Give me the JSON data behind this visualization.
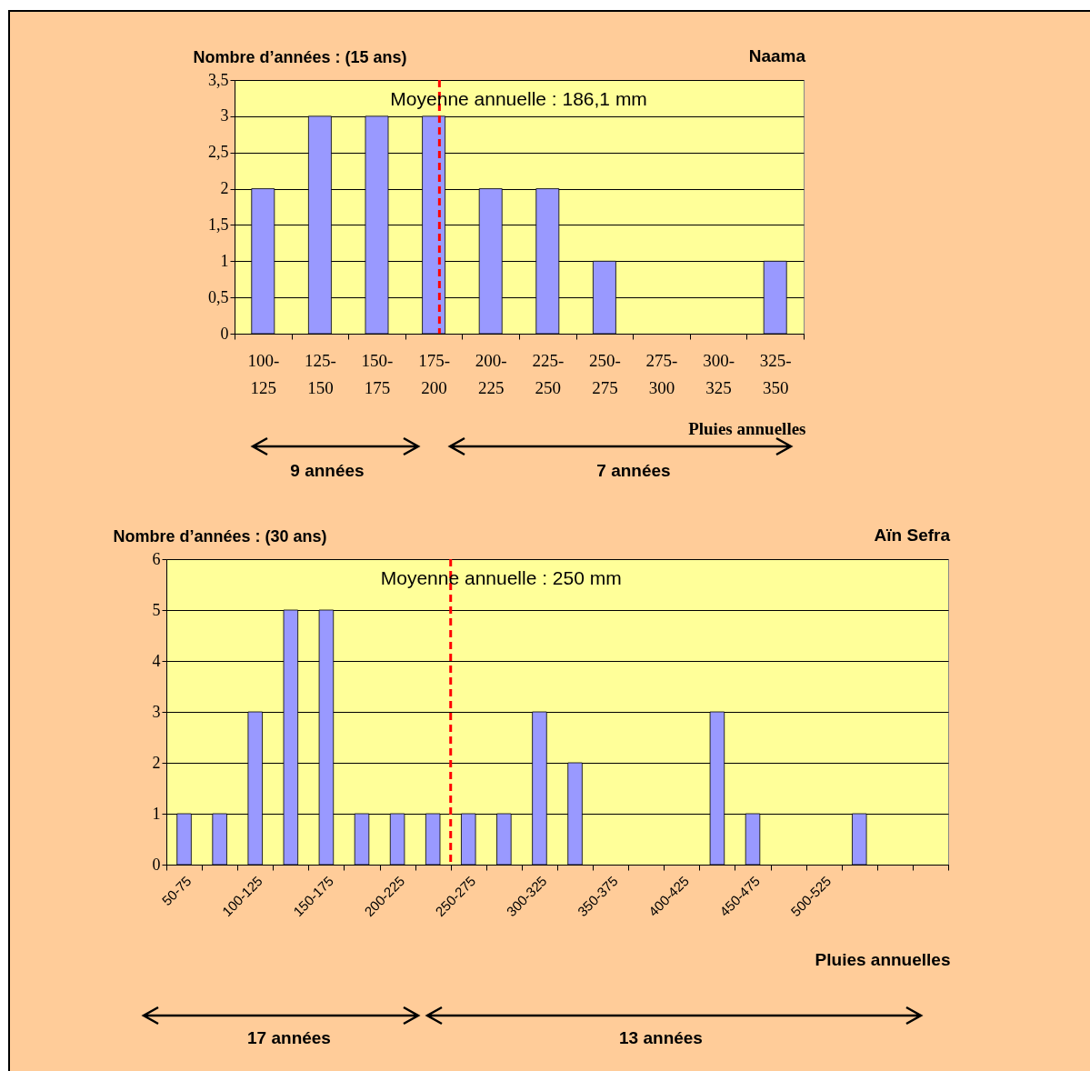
{
  "chart_data": [
    {
      "type": "bar",
      "title": "Naama",
      "ylabel": "Nombre d’années : (15 ans)",
      "xlabel": "Pluies annuelles",
      "color": "#9999ff",
      "grid": "y",
      "categories": [
        "100-\n125",
        "125-\n150",
        "150-\n175",
        "175-\n200",
        "200-\n225",
        "225-\n250",
        "250-\n275",
        "275-\n300",
        "300-\n325",
        "325-\n350"
      ],
      "values": [
        2,
        3,
        3,
        3,
        2,
        2,
        1,
        0,
        0,
        1
      ],
      "ylim": [
        0,
        3.5
      ],
      "yticks": [
        0,
        {
          "value": 0.5,
          "label": "0,5"
        },
        1,
        {
          "value": 1.5,
          "label": "1,5"
        },
        2,
        {
          "value": 2.5,
          "label": "2,5"
        },
        3,
        {
          "value": 3.5,
          "label": "3,5"
        }
      ],
      "ref_lines": [
        {
          "axis": "x",
          "value": "175-\n200",
          "label": "Moyenne annuelle : 186,1 mm",
          "color": "#ff0000",
          "line_style": "dashed"
        }
      ],
      "annotations": [
        "9 années",
        "7 années"
      ]
    },
    {
      "type": "bar",
      "title": "Aïn Sefra",
      "ylabel": "Nombre d’années : (30 ans)",
      "xlabel": "Pluies annuelles",
      "color": "#9999ff",
      "grid": "y",
      "categories": [
        "50-75",
        null,
        "100-125",
        null,
        "150-175",
        null,
        "200-225",
        null,
        "250-275",
        null,
        "300-325",
        null,
        "350-375",
        null,
        "400-425",
        null,
        "450-475",
        null,
        "500-525",
        null,
        null,
        null
      ],
      "values": [
        1,
        1,
        3,
        5,
        5,
        1,
        1,
        1,
        1,
        1,
        3,
        2,
        0,
        0,
        0,
        3,
        1,
        0,
        0,
        1,
        0,
        0
      ],
      "ylim": [
        0,
        6
      ],
      "yticks": [
        0,
        1,
        2,
        3,
        4,
        5,
        6
      ],
      "ref_lines": [
        {
          "axis": "x",
          "value": "250-275",
          "label": "Moyenne annuelle : 250 mm",
          "color": "#ff0000",
          "line_style": "dashed"
        }
      ],
      "annotations": [
        "17 années",
        "13 années"
      ]
    }
  ]
}
